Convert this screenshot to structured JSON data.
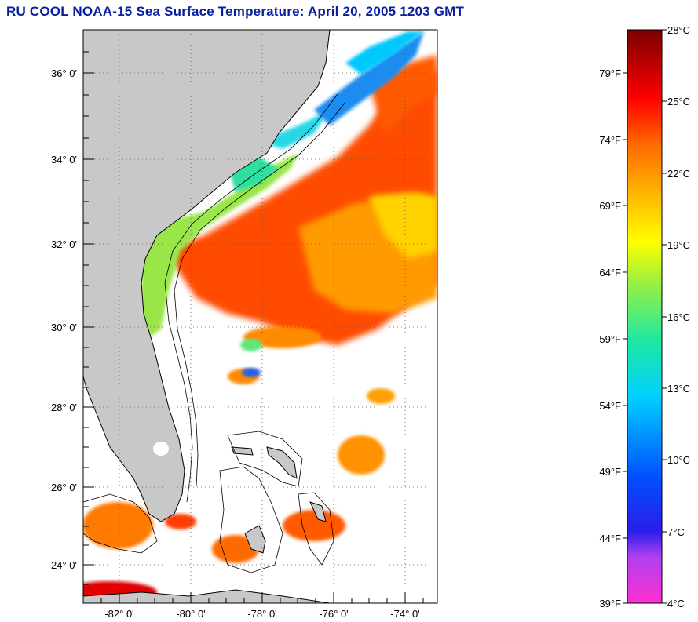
{
  "title": "RU COOL  NOAA-15  Sea Surface Temperature:  April 20, 2005 1203 GMT",
  "map": {
    "lat_labels": [
      "36° 0'",
      "34° 0'",
      "32° 0'",
      "30° 0'",
      "28° 0'",
      "26° 0'",
      "24° 0'"
    ],
    "lon_labels": [
      "-82° 0'",
      "-80° 0'",
      "-78° 0'",
      "-76° 0'",
      "-74° 0'"
    ],
    "land_color": "#c8c8c8",
    "ocean_no_data_color": "#ffffff"
  },
  "colorbar": {
    "celsius_labels": [
      "28°C",
      "25°C",
      "22°C",
      "19°C",
      "16°C",
      "13°C",
      "10°C",
      "7°C",
      "4°C"
    ],
    "fahrenheit_labels": [
      "79°F",
      "74°F",
      "69°F",
      "64°F",
      "59°F",
      "54°F",
      "49°F",
      "44°F",
      "39°F"
    ],
    "min_c": 4,
    "max_c": 28
  }
}
